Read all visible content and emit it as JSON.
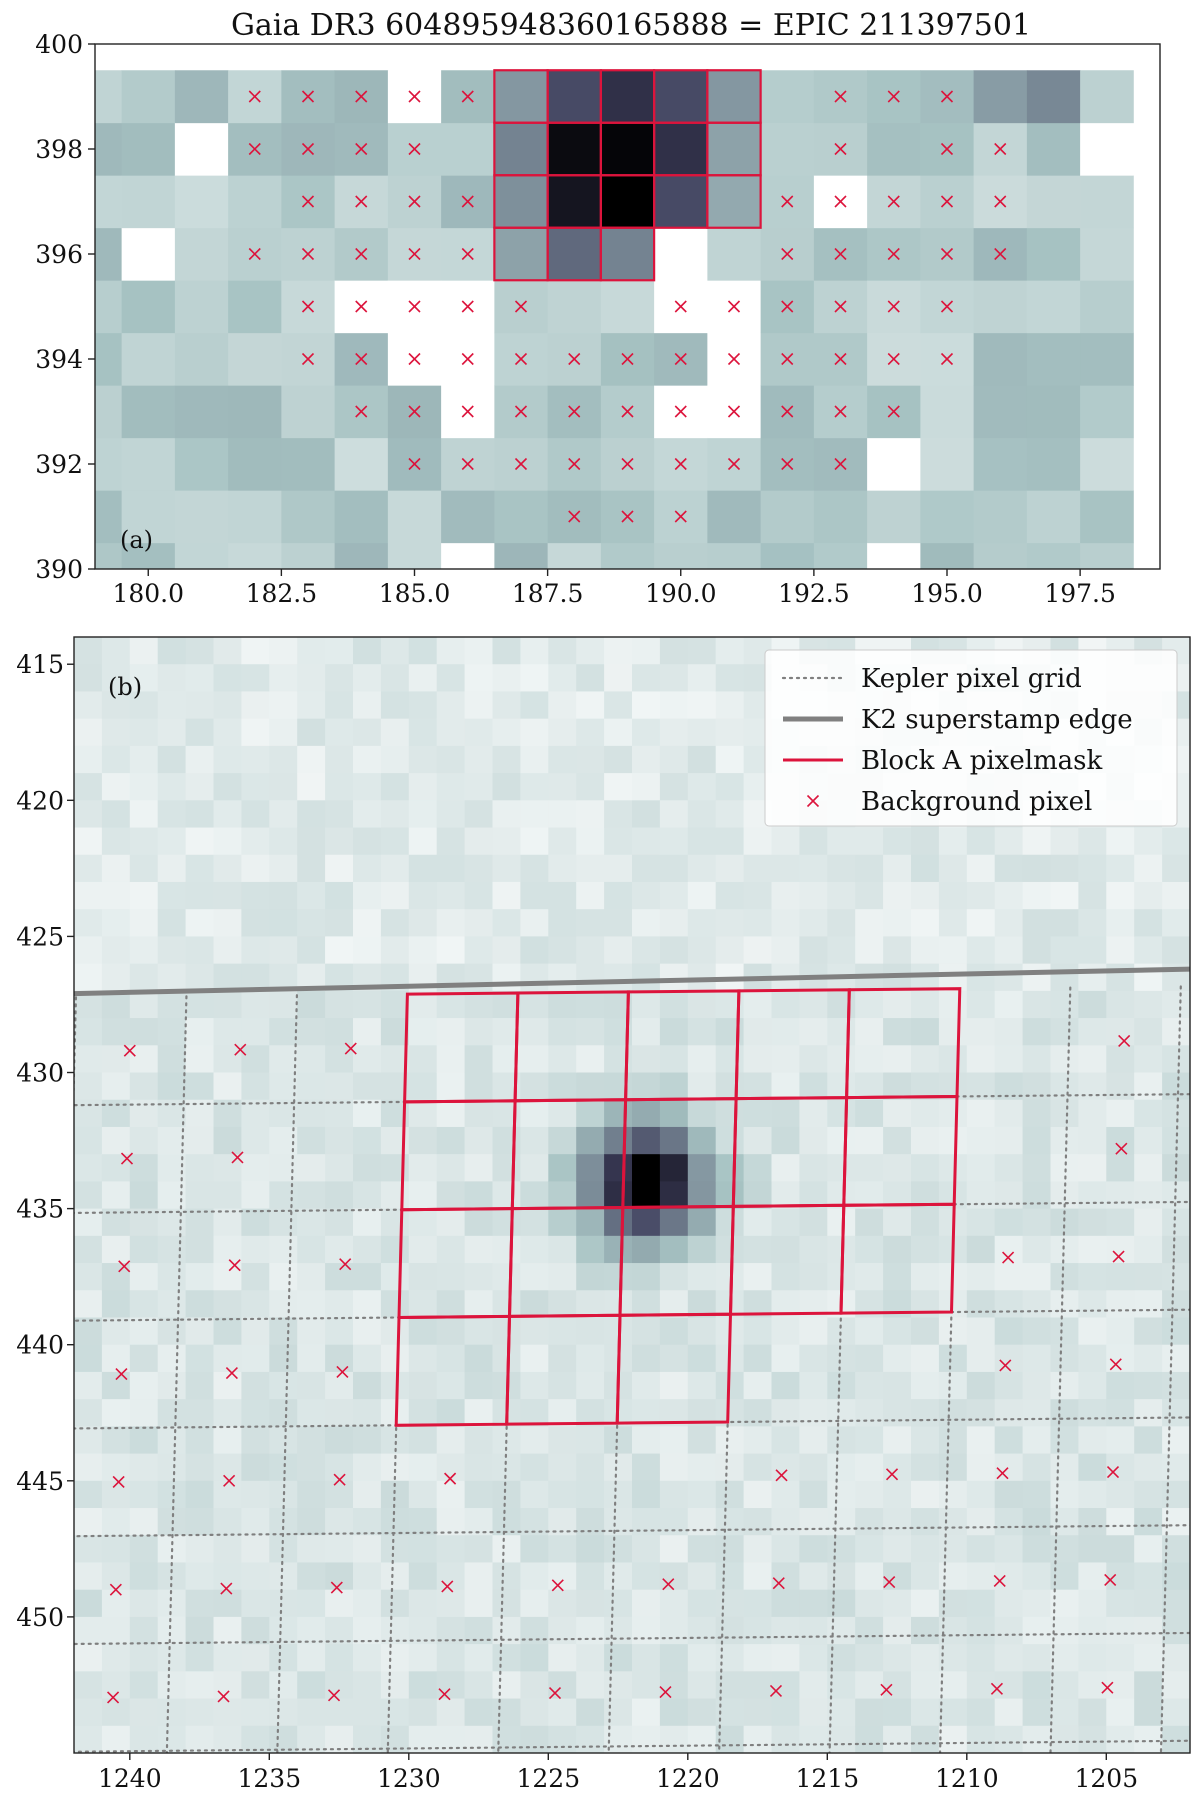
{
  "figure": {
    "title": "Gaia DR3 604895948360165888 = EPIC 211397501"
  },
  "chart_data": [
    {
      "panel": "(a)",
      "type": "heatmap",
      "title": "Gaia DR3 604895948360165888 = EPIC 211397501",
      "xlim": [
        179,
        199
      ],
      "ylim": [
        390,
        400
      ],
      "x_ticks": [
        180.0,
        182.5,
        185.0,
        187.5,
        190.0,
        192.5,
        195.0,
        197.5
      ],
      "x_tick_labels": [
        "180.0",
        "182.5",
        "185.0",
        "187.5",
        "190.0",
        "192.5",
        "195.0",
        "197.5"
      ],
      "y_ticks": [
        390,
        392,
        394,
        396,
        398,
        400
      ],
      "y_tick_labels": [
        "390",
        "392",
        "394",
        "396",
        "398",
        "400"
      ],
      "grid_x_range": [
        179,
        198
      ],
      "grid_y_range": [
        390,
        399
      ],
      "mask_pixels": [
        [
          187,
          396
        ],
        [
          188,
          396
        ],
        [
          189,
          396
        ],
        [
          187,
          397
        ],
        [
          188,
          397
        ],
        [
          189,
          397
        ],
        [
          190,
          397
        ],
        [
          191,
          397
        ],
        [
          187,
          398
        ],
        [
          188,
          398
        ],
        [
          189,
          398
        ],
        [
          190,
          398
        ],
        [
          191,
          398
        ],
        [
          187,
          399
        ],
        [
          188,
          399
        ],
        [
          189,
          399
        ],
        [
          190,
          399
        ],
        [
          191,
          399
        ]
      ],
      "dark_pixels": [
        {
          "x": 188,
          "y": 398,
          "v": 0.96
        },
        {
          "x": 189,
          "y": 398,
          "v": 0.98
        },
        {
          "x": 188,
          "y": 397,
          "v": 0.92
        },
        {
          "x": 189,
          "y": 397,
          "v": 1.0
        },
        {
          "x": 189,
          "y": 399,
          "v": 0.82
        },
        {
          "x": 190,
          "y": 398,
          "v": 0.82
        },
        {
          "x": 190,
          "y": 399,
          "v": 0.72
        },
        {
          "x": 188,
          "y": 399,
          "v": 0.72
        },
        {
          "x": 190,
          "y": 397,
          "v": 0.72
        },
        {
          "x": 188,
          "y": 396,
          "v": 0.6
        },
        {
          "x": 187,
          "y": 398,
          "v": 0.5
        },
        {
          "x": 189,
          "y": 396,
          "v": 0.5
        },
        {
          "x": 187,
          "y": 397,
          "v": 0.45
        },
        {
          "x": 187,
          "y": 399,
          "v": 0.42
        },
        {
          "x": 191,
          "y": 399,
          "v": 0.42
        },
        {
          "x": 191,
          "y": 398,
          "v": 0.38
        },
        {
          "x": 191,
          "y": 397,
          "v": 0.35
        },
        {
          "x": 187,
          "y": 396,
          "v": 0.38
        },
        {
          "x": 196,
          "y": 399,
          "v": 0.4
        },
        {
          "x": 197,
          "y": 399,
          "v": 0.48
        }
      ],
      "bg_pixels": [
        [
          182,
          399
        ],
        [
          183,
          399
        ],
        [
          184,
          399
        ],
        [
          185,
          399
        ],
        [
          186,
          399
        ],
        [
          193,
          399
        ],
        [
          194,
          399
        ],
        [
          195,
          399
        ],
        [
          182,
          398
        ],
        [
          183,
          398
        ],
        [
          184,
          398
        ],
        [
          185,
          398
        ],
        [
          193,
          398
        ],
        [
          195,
          398
        ],
        [
          196,
          398
        ],
        [
          183,
          397
        ],
        [
          184,
          397
        ],
        [
          185,
          397
        ],
        [
          186,
          397
        ],
        [
          192,
          397
        ],
        [
          193,
          397
        ],
        [
          194,
          397
        ],
        [
          195,
          397
        ],
        [
          196,
          397
        ],
        [
          182,
          396
        ],
        [
          183,
          396
        ],
        [
          184,
          396
        ],
        [
          185,
          396
        ],
        [
          186,
          396
        ],
        [
          192,
          396
        ],
        [
          193,
          396
        ],
        [
          194,
          396
        ],
        [
          195,
          396
        ],
        [
          196,
          396
        ],
        [
          183,
          395
        ],
        [
          184,
          395
        ],
        [
          185,
          395
        ],
        [
          186,
          395
        ],
        [
          187,
          395
        ],
        [
          190,
          395
        ],
        [
          191,
          395
        ],
        [
          192,
          395
        ],
        [
          193,
          395
        ],
        [
          194,
          395
        ],
        [
          195,
          395
        ],
        [
          183,
          394
        ],
        [
          184,
          394
        ],
        [
          185,
          394
        ],
        [
          186,
          394
        ],
        [
          187,
          394
        ],
        [
          188,
          394
        ],
        [
          189,
          394
        ],
        [
          190,
          394
        ],
        [
          191,
          394
        ],
        [
          192,
          394
        ],
        [
          193,
          394
        ],
        [
          194,
          394
        ],
        [
          195,
          394
        ],
        [
          184,
          393
        ],
        [
          185,
          393
        ],
        [
          186,
          393
        ],
        [
          187,
          393
        ],
        [
          188,
          393
        ],
        [
          189,
          393
        ],
        [
          190,
          393
        ],
        [
          191,
          393
        ],
        [
          192,
          393
        ],
        [
          193,
          393
        ],
        [
          194,
          393
        ],
        [
          185,
          392
        ],
        [
          186,
          392
        ],
        [
          187,
          392
        ],
        [
          188,
          392
        ],
        [
          189,
          392
        ],
        [
          190,
          392
        ],
        [
          191,
          392
        ],
        [
          192,
          392
        ],
        [
          193,
          392
        ],
        [
          188,
          391
        ],
        [
          189,
          391
        ],
        [
          190,
          391
        ]
      ],
      "white_pixels": [
        [
          184,
          395
        ],
        [
          185,
          395
        ],
        [
          186,
          395
        ],
        [
          190,
          395
        ],
        [
          191,
          395
        ],
        [
          185,
          394
        ],
        [
          186,
          394
        ],
        [
          191,
          394
        ],
        [
          186,
          393
        ],
        [
          190,
          393
        ],
        [
          191,
          393
        ],
        [
          194,
          392
        ],
        [
          186,
          390
        ],
        [
          194,
          390
        ],
        [
          193,
          397
        ],
        [
          180,
          396
        ],
        [
          181,
          398
        ],
        [
          198,
          398
        ],
        [
          185,
          399
        ],
        [
          190,
          396
        ]
      ]
    },
    {
      "panel": "(b)",
      "type": "heatmap",
      "xlim": [
        1242,
        1202
      ],
      "ylim": [
        455,
        414
      ],
      "x_ticks": [
        1240,
        1235,
        1230,
        1225,
        1220,
        1215,
        1210,
        1205
      ],
      "x_tick_labels": [
        "1240",
        "1235",
        "1230",
        "1225",
        "1220",
        "1215",
        "1210",
        "1205"
      ],
      "y_ticks": [
        415,
        420,
        425,
        430,
        435,
        440,
        445,
        450
      ],
      "y_tick_labels": [
        "415",
        "420",
        "425",
        "430",
        "435",
        "440",
        "445",
        "450"
      ],
      "star_center": [
        1221.5,
        434
      ],
      "superstamp_edge": [
        [
          1242,
          427.1
        ],
        [
          1202,
          426.2
        ]
      ],
      "kepler_grid": {
        "origin": [
          1240,
          429.2
        ],
        "col_vector": [
          -3.96,
          -0.04
        ],
        "row_vector": [
          0.1,
          3.96
        ],
        "columns": 10,
        "rows": 7
      },
      "mask_cells": [
        [
          3,
          0
        ],
        [
          4,
          0
        ],
        [
          5,
          0
        ],
        [
          6,
          0
        ],
        [
          7,
          0
        ],
        [
          3,
          1
        ],
        [
          4,
          1
        ],
        [
          5,
          1
        ],
        [
          6,
          1
        ],
        [
          7,
          1
        ],
        [
          3,
          2
        ],
        [
          4,
          2
        ],
        [
          5,
          2
        ],
        [
          6,
          2
        ],
        [
          7,
          2
        ],
        [
          3,
          3
        ],
        [
          4,
          3
        ],
        [
          5,
          3
        ]
      ],
      "bg_cells": [
        [
          0,
          0
        ],
        [
          1,
          0
        ],
        [
          2,
          0
        ],
        [
          9,
          0
        ],
        [
          0,
          1
        ],
        [
          1,
          1
        ],
        [
          9,
          1
        ],
        [
          0,
          2
        ],
        [
          1,
          2
        ],
        [
          2,
          2
        ],
        [
          8,
          2
        ],
        [
          9,
          2
        ],
        [
          0,
          3
        ],
        [
          1,
          3
        ],
        [
          2,
          3
        ],
        [
          8,
          3
        ],
        [
          9,
          3
        ],
        [
          0,
          4
        ],
        [
          1,
          4
        ],
        [
          2,
          4
        ],
        [
          3,
          4
        ],
        [
          6,
          4
        ],
        [
          7,
          4
        ],
        [
          8,
          4
        ],
        [
          9,
          4
        ],
        [
          0,
          5
        ],
        [
          1,
          5
        ],
        [
          2,
          5
        ],
        [
          3,
          5
        ],
        [
          4,
          5
        ],
        [
          5,
          5
        ],
        [
          6,
          5
        ],
        [
          7,
          5
        ],
        [
          8,
          5
        ],
        [
          9,
          5
        ],
        [
          0,
          6
        ],
        [
          1,
          6
        ],
        [
          2,
          6
        ],
        [
          3,
          6
        ],
        [
          4,
          6
        ],
        [
          5,
          6
        ],
        [
          6,
          6
        ],
        [
          7,
          6
        ],
        [
          8,
          6
        ],
        [
          9,
          6
        ]
      ],
      "legend": {
        "position": "top-right",
        "entries": [
          {
            "label": "Kepler pixel grid",
            "style": "dotted",
            "color": "#7f7f7f"
          },
          {
            "label": "K2 superstamp edge",
            "style": "thick",
            "color": "#808080"
          },
          {
            "label": "Block A pixelmask",
            "style": "solid",
            "color": "#dc143c"
          },
          {
            "label": "Background pixel",
            "style": "marker-x",
            "color": "#dc143c"
          }
        ]
      }
    }
  ],
  "colors": {
    "mask": "#dc143c",
    "background_marker": "#dc143c",
    "grid": "#7f7f7f",
    "edge": "#808080",
    "map_light": "#ffffff",
    "map_mid": "#a7c3c3",
    "map_dark": "#000000"
  }
}
